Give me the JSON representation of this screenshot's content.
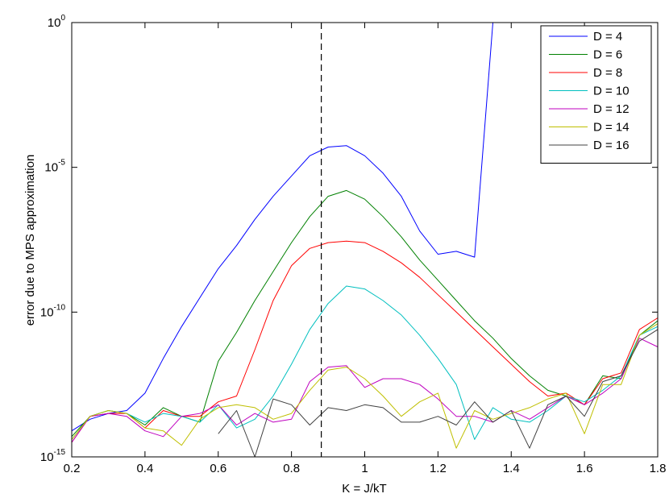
{
  "chart_data": {
    "type": "line",
    "xlabel": "K = J/kT",
    "ylabel": "error due to MPS approximation",
    "xlim": [
      0.2,
      1.8
    ],
    "ylim_log10": [
      -15,
      0
    ],
    "yscale": "log",
    "x_ticks": [
      0.2,
      0.4,
      0.6,
      0.8,
      1,
      1.2,
      1.4,
      1.6,
      1.8
    ],
    "x_tick_labels": [
      "0.2",
      "0.4",
      "0.6",
      "0.8",
      "1",
      "1.2",
      "1.4",
      "1.6",
      "1.8"
    ],
    "y_ticks": [
      {
        "exp": 0,
        "base": "10",
        "sup": "0"
      },
      {
        "exp": -5,
        "base": "10",
        "sup": "-5"
      },
      {
        "exp": -10,
        "base": "10",
        "sup": "-10"
      },
      {
        "exp": -15,
        "base": "10",
        "sup": "-15"
      }
    ],
    "vline_x": 0.8814,
    "legend_position": "top-right",
    "grid": false,
    "series": [
      {
        "name": "D = 4",
        "color": "#0000ff",
        "points": [
          [
            0.2,
            -14.1
          ],
          [
            0.25,
            -13.7
          ],
          [
            0.3,
            -13.5
          ],
          [
            0.35,
            -13.4
          ],
          [
            0.4,
            -12.8
          ],
          [
            0.45,
            -11.6
          ],
          [
            0.5,
            -10.5
          ],
          [
            0.55,
            -9.5
          ],
          [
            0.6,
            -8.5
          ],
          [
            0.65,
            -7.7
          ],
          [
            0.7,
            -6.8
          ],
          [
            0.75,
            -6.0
          ],
          [
            0.8,
            -5.3
          ],
          [
            0.85,
            -4.6
          ],
          [
            0.9,
            -4.3
          ],
          [
            0.95,
            -4.25
          ],
          [
            1.0,
            -4.6
          ],
          [
            1.05,
            -5.2
          ],
          [
            1.1,
            -6.0
          ],
          [
            1.15,
            -7.2
          ],
          [
            1.2,
            -8.0
          ],
          [
            1.25,
            -7.9
          ],
          [
            1.3,
            -8.1
          ],
          [
            1.35,
            0
          ],
          [
            1.4,
            0
          ],
          [
            1.45,
            0
          ],
          [
            1.5,
            0
          ],
          [
            1.55,
            0
          ],
          [
            1.6,
            0
          ],
          [
            1.65,
            0
          ],
          [
            1.7,
            0
          ],
          [
            1.75,
            null
          ],
          [
            1.8,
            0
          ]
        ]
      },
      {
        "name": "D = 6",
        "color": "#008000",
        "points": [
          [
            0.2,
            -14.3
          ],
          [
            0.25,
            -13.6
          ],
          [
            0.3,
            -13.4
          ],
          [
            0.35,
            -13.5
          ],
          [
            0.4,
            -13.9
          ],
          [
            0.45,
            -13.3
          ],
          [
            0.5,
            -13.6
          ],
          [
            0.55,
            -13.8
          ],
          [
            0.6,
            -11.7
          ],
          [
            0.65,
            -10.7
          ],
          [
            0.7,
            -9.6
          ],
          [
            0.75,
            -8.6
          ],
          [
            0.8,
            -7.6
          ],
          [
            0.85,
            -6.7
          ],
          [
            0.9,
            -6.0
          ],
          [
            0.95,
            -5.8
          ],
          [
            1.0,
            -6.1
          ],
          [
            1.05,
            -6.7
          ],
          [
            1.1,
            -7.4
          ],
          [
            1.15,
            -8.2
          ],
          [
            1.2,
            -8.9
          ],
          [
            1.25,
            -9.6
          ],
          [
            1.3,
            -10.3
          ],
          [
            1.35,
            -10.9
          ],
          [
            1.4,
            -11.6
          ],
          [
            1.45,
            -12.2
          ],
          [
            1.5,
            -12.7
          ],
          [
            1.55,
            -12.9
          ],
          [
            1.6,
            -13.2
          ],
          [
            1.65,
            -12.2
          ],
          [
            1.7,
            -12.3
          ],
          [
            1.75,
            -10.8
          ],
          [
            1.8,
            -10.3
          ]
        ]
      },
      {
        "name": "D = 8",
        "color": "#ff0000",
        "points": [
          [
            0.2,
            -14.5
          ],
          [
            0.25,
            -13.6
          ],
          [
            0.3,
            -13.5
          ],
          [
            0.35,
            -13.5
          ],
          [
            0.4,
            -14.0
          ],
          [
            0.45,
            -13.4
          ],
          [
            0.5,
            -13.6
          ],
          [
            0.55,
            -13.6
          ],
          [
            0.6,
            -13.1
          ],
          [
            0.65,
            -12.9
          ],
          [
            0.7,
            -11.3
          ],
          [
            0.75,
            -9.6
          ],
          [
            0.8,
            -8.4
          ],
          [
            0.85,
            -7.8
          ],
          [
            0.9,
            -7.6
          ],
          [
            0.95,
            -7.55
          ],
          [
            1.0,
            -7.6
          ],
          [
            1.05,
            -7.9
          ],
          [
            1.1,
            -8.3
          ],
          [
            1.15,
            -8.8
          ],
          [
            1.2,
            -9.4
          ],
          [
            1.25,
            -10.0
          ],
          [
            1.3,
            -10.6
          ],
          [
            1.35,
            -11.2
          ],
          [
            1.4,
            -11.8
          ],
          [
            1.45,
            -12.4
          ],
          [
            1.5,
            -12.9
          ],
          [
            1.55,
            -12.8
          ],
          [
            1.6,
            -13.2
          ],
          [
            1.65,
            -12.3
          ],
          [
            1.7,
            -12.1
          ],
          [
            1.75,
            -10.6
          ],
          [
            1.8,
            -10.2
          ]
        ]
      },
      {
        "name": "D = 10",
        "color": "#00bfbf",
        "points": [
          [
            0.2,
            -14.4
          ],
          [
            0.25,
            -13.6
          ],
          [
            0.3,
            -13.4
          ],
          [
            0.35,
            -13.5
          ],
          [
            0.4,
            -13.8
          ],
          [
            0.45,
            -13.5
          ],
          [
            0.5,
            -13.6
          ],
          [
            0.55,
            -13.8
          ],
          [
            0.6,
            -13.2
          ],
          [
            0.65,
            -14.0
          ],
          [
            0.7,
            -13.7
          ],
          [
            0.75,
            -12.9
          ],
          [
            0.8,
            -11.8
          ],
          [
            0.85,
            -10.6
          ],
          [
            0.9,
            -9.7
          ],
          [
            0.95,
            -9.1
          ],
          [
            1.0,
            -9.2
          ],
          [
            1.05,
            -9.6
          ],
          [
            1.1,
            -10.1
          ],
          [
            1.15,
            -10.8
          ],
          [
            1.2,
            -11.6
          ],
          [
            1.25,
            -12.5
          ],
          [
            1.3,
            -14.4
          ],
          [
            1.35,
            -13.3
          ],
          [
            1.4,
            -13.7
          ],
          [
            1.45,
            -13.8
          ],
          [
            1.5,
            -13.4
          ],
          [
            1.55,
            -12.9
          ],
          [
            1.6,
            -13.1
          ],
          [
            1.65,
            -12.7
          ],
          [
            1.7,
            -12.2
          ],
          [
            1.75,
            -10.8
          ],
          [
            1.8,
            -10.5
          ]
        ]
      },
      {
        "name": "D = 12",
        "color": "#bf00bf",
        "points": [
          [
            0.2,
            -14.5
          ],
          [
            0.25,
            -13.6
          ],
          [
            0.3,
            -13.5
          ],
          [
            0.35,
            -13.6
          ],
          [
            0.4,
            -14.1
          ],
          [
            0.45,
            -14.3
          ],
          [
            0.5,
            -13.6
          ],
          [
            0.55,
            -13.5
          ],
          [
            0.6,
            -13.2
          ],
          [
            0.65,
            -13.9
          ],
          [
            0.7,
            -13.5
          ],
          [
            0.75,
            -13.8
          ],
          [
            0.8,
            -13.7
          ],
          [
            0.85,
            -12.4
          ],
          [
            0.9,
            -11.9
          ],
          [
            0.95,
            -11.85
          ],
          [
            1.0,
            -12.6
          ],
          [
            1.05,
            -12.3
          ],
          [
            1.1,
            -12.3
          ],
          [
            1.15,
            -12.5
          ],
          [
            1.2,
            -13.0
          ],
          [
            1.25,
            -13.6
          ],
          [
            1.3,
            -13.6
          ],
          [
            1.35,
            -13.8
          ],
          [
            1.4,
            -13.4
          ],
          [
            1.45,
            -13.7
          ],
          [
            1.5,
            -13.3
          ],
          [
            1.55,
            -12.9
          ],
          [
            1.6,
            -13.2
          ],
          [
            1.65,
            -12.8
          ],
          [
            1.7,
            -12.3
          ],
          [
            1.75,
            -10.9
          ],
          [
            1.8,
            -11.2
          ]
        ]
      },
      {
        "name": "D = 14",
        "color": "#bfbf00",
        "points": [
          [
            0.2,
            -14.4
          ],
          [
            0.25,
            -13.6
          ],
          [
            0.3,
            -13.4
          ],
          [
            0.35,
            -13.5
          ],
          [
            0.4,
            -14.0
          ],
          [
            0.45,
            -14.1
          ],
          [
            0.5,
            -14.6
          ],
          [
            0.55,
            -13.7
          ],
          [
            0.6,
            -13.3
          ],
          [
            0.65,
            -13.2
          ],
          [
            0.7,
            -13.3
          ],
          [
            0.75,
            -13.7
          ],
          [
            0.8,
            -13.5
          ],
          [
            0.85,
            -12.7
          ],
          [
            0.9,
            -12.0
          ],
          [
            0.95,
            -11.9
          ],
          [
            1.0,
            -12.3
          ],
          [
            1.05,
            -12.9
          ],
          [
            1.1,
            -13.6
          ],
          [
            1.15,
            -13.1
          ],
          [
            1.2,
            -12.8
          ],
          [
            1.25,
            -14.7
          ],
          [
            1.3,
            -13.4
          ],
          [
            1.35,
            -13.7
          ],
          [
            1.4,
            -13.5
          ],
          [
            1.45,
            -13.3
          ],
          [
            1.5,
            -13.0
          ],
          [
            1.55,
            -12.8
          ],
          [
            1.6,
            -14.2
          ],
          [
            1.65,
            -12.5
          ],
          [
            1.7,
            -12.5
          ],
          [
            1.75,
            -10.8
          ],
          [
            1.8,
            -10.4
          ]
        ]
      },
      {
        "name": "D = 16",
        "color": "#404040",
        "points": [
          [
            0.2,
            null
          ],
          [
            0.25,
            null
          ],
          [
            0.3,
            null
          ],
          [
            0.35,
            null
          ],
          [
            0.4,
            null
          ],
          [
            0.45,
            null
          ],
          [
            0.5,
            null
          ],
          [
            0.55,
            null
          ],
          [
            0.6,
            -14.2
          ],
          [
            0.65,
            -13.4
          ],
          [
            0.7,
            -15.0
          ],
          [
            0.75,
            -13.0
          ],
          [
            0.8,
            -13.2
          ],
          [
            0.85,
            -13.9
          ],
          [
            0.9,
            -13.3
          ],
          [
            0.95,
            -13.4
          ],
          [
            1.0,
            -13.2
          ],
          [
            1.05,
            -13.3
          ],
          [
            1.1,
            -13.8
          ],
          [
            1.15,
            -13.8
          ],
          [
            1.2,
            -13.6
          ],
          [
            1.25,
            -13.9
          ],
          [
            1.3,
            -13.1
          ],
          [
            1.35,
            -13.8
          ],
          [
            1.4,
            -13.4
          ],
          [
            1.45,
            -14.7
          ],
          [
            1.5,
            -13.2
          ],
          [
            1.55,
            -12.9
          ],
          [
            1.6,
            -13.6
          ],
          [
            1.65,
            -12.4
          ],
          [
            1.7,
            -12.2
          ],
          [
            1.75,
            -11.0
          ],
          [
            1.8,
            -10.6
          ]
        ]
      }
    ]
  }
}
